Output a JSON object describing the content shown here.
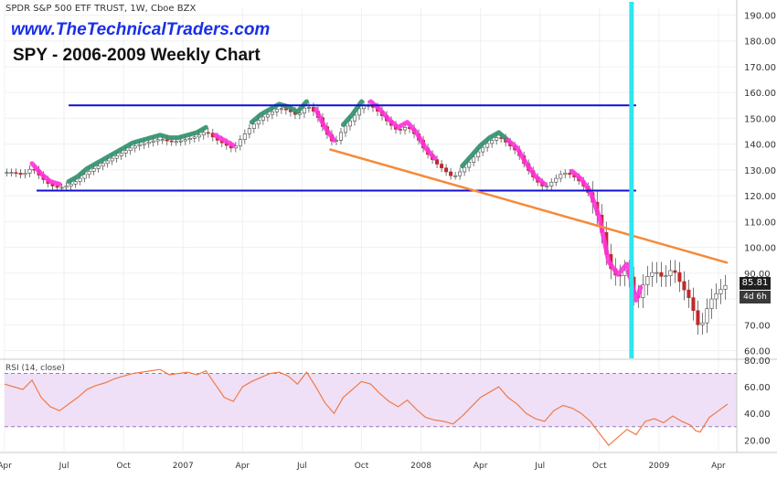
{
  "header": {
    "symbol_line": "SPDR S&P 500 ETF TRUST, 1W, Cboe BZX",
    "website": "www.TheTechnicalTraders.com",
    "chart_title": "SPY - 2006-2009 Weekly Chart"
  },
  "price_badge": {
    "value": "85.81",
    "countdown": "4d 6h"
  },
  "rsi_pane": {
    "label": "RSI (14, close)"
  },
  "colors": {
    "support_resistance": "#1010d0",
    "trendline": "#f58a3a",
    "vertical_marker": "#2ee6f0",
    "green_highlight": "#2f8f6a",
    "magenta_highlight": "#ff33dd",
    "rsi_line": "#f07a45",
    "rsi_band": "#efe0f7",
    "up_candle": "#ffffff",
    "down_candle": "#c0282a"
  },
  "chart_data": [
    {
      "type": "candlestick",
      "title": "SPY - 2006-2009 Weekly Chart",
      "ylim": [
        57,
        193
      ],
      "y_ticks": [
        60,
        70,
        80,
        90,
        100,
        110,
        120,
        130,
        140,
        150,
        160,
        170,
        180,
        190
      ],
      "x_tick_labels": [
        {
          "label": "Apr",
          "t": 0
        },
        {
          "label": "Jul",
          "t": 13
        },
        {
          "label": "Oct",
          "t": 26
        },
        {
          "label": "2007",
          "t": 39
        },
        {
          "label": "Apr",
          "t": 52
        },
        {
          "label": "Jul",
          "t": 65
        },
        {
          "label": "Oct",
          "t": 78
        },
        {
          "label": "2008",
          "t": 91
        },
        {
          "label": "Apr",
          "t": 104
        },
        {
          "label": "Jul",
          "t": 117
        },
        {
          "label": "Oct",
          "t": 130
        },
        {
          "label": "2009",
          "t": 143
        },
        {
          "label": "Apr",
          "t": 156
        }
      ],
      "series_weekly_close": [
        [
          0,
          129
        ],
        [
          2,
          129
        ],
        [
          4,
          128
        ],
        [
          6,
          131
        ],
        [
          8,
          127
        ],
        [
          10,
          124
        ],
        [
          12,
          123
        ],
        [
          14,
          124
        ],
        [
          16,
          126
        ],
        [
          18,
          129
        ],
        [
          20,
          131
        ],
        [
          22,
          133
        ],
        [
          24,
          135
        ],
        [
          26,
          137
        ],
        [
          28,
          139
        ],
        [
          30,
          140
        ],
        [
          32,
          141
        ],
        [
          34,
          142
        ],
        [
          36,
          141
        ],
        [
          38,
          141
        ],
        [
          40,
          142
        ],
        [
          42,
          143
        ],
        [
          44,
          145
        ],
        [
          46,
          142
        ],
        [
          48,
          140
        ],
        [
          50,
          138
        ],
        [
          52,
          143
        ],
        [
          54,
          147
        ],
        [
          56,
          150
        ],
        [
          58,
          152
        ],
        [
          60,
          154
        ],
        [
          62,
          153
        ],
        [
          64,
          151
        ],
        [
          66,
          155
        ],
        [
          68,
          152
        ],
        [
          70,
          145
        ],
        [
          72,
          140
        ],
        [
          74,
          146
        ],
        [
          76,
          150
        ],
        [
          78,
          155
        ],
        [
          80,
          155
        ],
        [
          82,
          152
        ],
        [
          84,
          148
        ],
        [
          86,
          145
        ],
        [
          88,
          147
        ],
        [
          90,
          143
        ],
        [
          92,
          137
        ],
        [
          94,
          133
        ],
        [
          96,
          130
        ],
        [
          98,
          127
        ],
        [
          100,
          130
        ],
        [
          102,
          134
        ],
        [
          104,
          138
        ],
        [
          106,
          141
        ],
        [
          108,
          143
        ],
        [
          110,
          140
        ],
        [
          112,
          137
        ],
        [
          114,
          131
        ],
        [
          116,
          126
        ],
        [
          118,
          123
        ],
        [
          120,
          126
        ],
        [
          122,
          129
        ],
        [
          124,
          128
        ],
        [
          126,
          125
        ],
        [
          128,
          120
        ],
        [
          130,
          110
        ],
        [
          132,
          93
        ],
        [
          134,
          88
        ],
        [
          136,
          92
        ],
        [
          138,
          78
        ],
        [
          140,
          88
        ],
        [
          142,
          91
        ],
        [
          144,
          88
        ],
        [
          146,
          92
        ],
        [
          148,
          85
        ],
        [
          150,
          79
        ],
        [
          151,
          72
        ],
        [
          152,
          68
        ],
        [
          154,
          79
        ],
        [
          156,
          83
        ],
        [
          158,
          86
        ]
      ],
      "annotations": {
        "resistance_line": {
          "y": 155,
          "t_from": 14,
          "t_to": 138
        },
        "support_line": {
          "y": 122,
          "t_from": 7,
          "t_to": 138
        },
        "trendline": {
          "from": [
            71,
            138
          ],
          "to": [
            158,
            94
          ]
        },
        "vertical_marker_t": 137
      }
    },
    {
      "type": "line",
      "title": "RSI (14, close)",
      "ylim": [
        12,
        80
      ],
      "y_ticks": [
        20,
        40,
        60,
        80
      ],
      "band": [
        30,
        70
      ],
      "series_rsi": [
        [
          0,
          62
        ],
        [
          2,
          60
        ],
        [
          4,
          58
        ],
        [
          6,
          65
        ],
        [
          8,
          52
        ],
        [
          10,
          45
        ],
        [
          12,
          42
        ],
        [
          14,
          47
        ],
        [
          16,
          52
        ],
        [
          18,
          58
        ],
        [
          20,
          61
        ],
        [
          22,
          63
        ],
        [
          24,
          66
        ],
        [
          26,
          68
        ],
        [
          28,
          70
        ],
        [
          30,
          71
        ],
        [
          32,
          72
        ],
        [
          34,
          73
        ],
        [
          36,
          69
        ],
        [
          38,
          70
        ],
        [
          40,
          71
        ],
        [
          42,
          69
        ],
        [
          44,
          72
        ],
        [
          46,
          62
        ],
        [
          48,
          52
        ],
        [
          50,
          49
        ],
        [
          52,
          60
        ],
        [
          54,
          64
        ],
        [
          56,
          67
        ],
        [
          58,
          70
        ],
        [
          60,
          71
        ],
        [
          62,
          68
        ],
        [
          64,
          62
        ],
        [
          66,
          71
        ],
        [
          68,
          60
        ],
        [
          70,
          48
        ],
        [
          72,
          40
        ],
        [
          74,
          52
        ],
        [
          76,
          58
        ],
        [
          78,
          64
        ],
        [
          80,
          62
        ],
        [
          82,
          55
        ],
        [
          84,
          49
        ],
        [
          86,
          45
        ],
        [
          88,
          50
        ],
        [
          90,
          43
        ],
        [
          92,
          37
        ],
        [
          94,
          35
        ],
        [
          96,
          34
        ],
        [
          98,
          32
        ],
        [
          100,
          38
        ],
        [
          102,
          45
        ],
        [
          104,
          52
        ],
        [
          106,
          56
        ],
        [
          108,
          60
        ],
        [
          110,
          52
        ],
        [
          112,
          47
        ],
        [
          114,
          40
        ],
        [
          116,
          36
        ],
        [
          118,
          34
        ],
        [
          120,
          42
        ],
        [
          122,
          46
        ],
        [
          124,
          44
        ],
        [
          126,
          40
        ],
        [
          128,
          34
        ],
        [
          130,
          25
        ],
        [
          132,
          16
        ],
        [
          134,
          22
        ],
        [
          136,
          28
        ],
        [
          138,
          24
        ],
        [
          140,
          34
        ],
        [
          142,
          36
        ],
        [
          144,
          33
        ],
        [
          146,
          38
        ],
        [
          148,
          34
        ],
        [
          150,
          31
        ],
        [
          151,
          27
        ],
        [
          152,
          26
        ],
        [
          154,
          37
        ],
        [
          156,
          42
        ],
        [
          158,
          47
        ]
      ]
    }
  ]
}
